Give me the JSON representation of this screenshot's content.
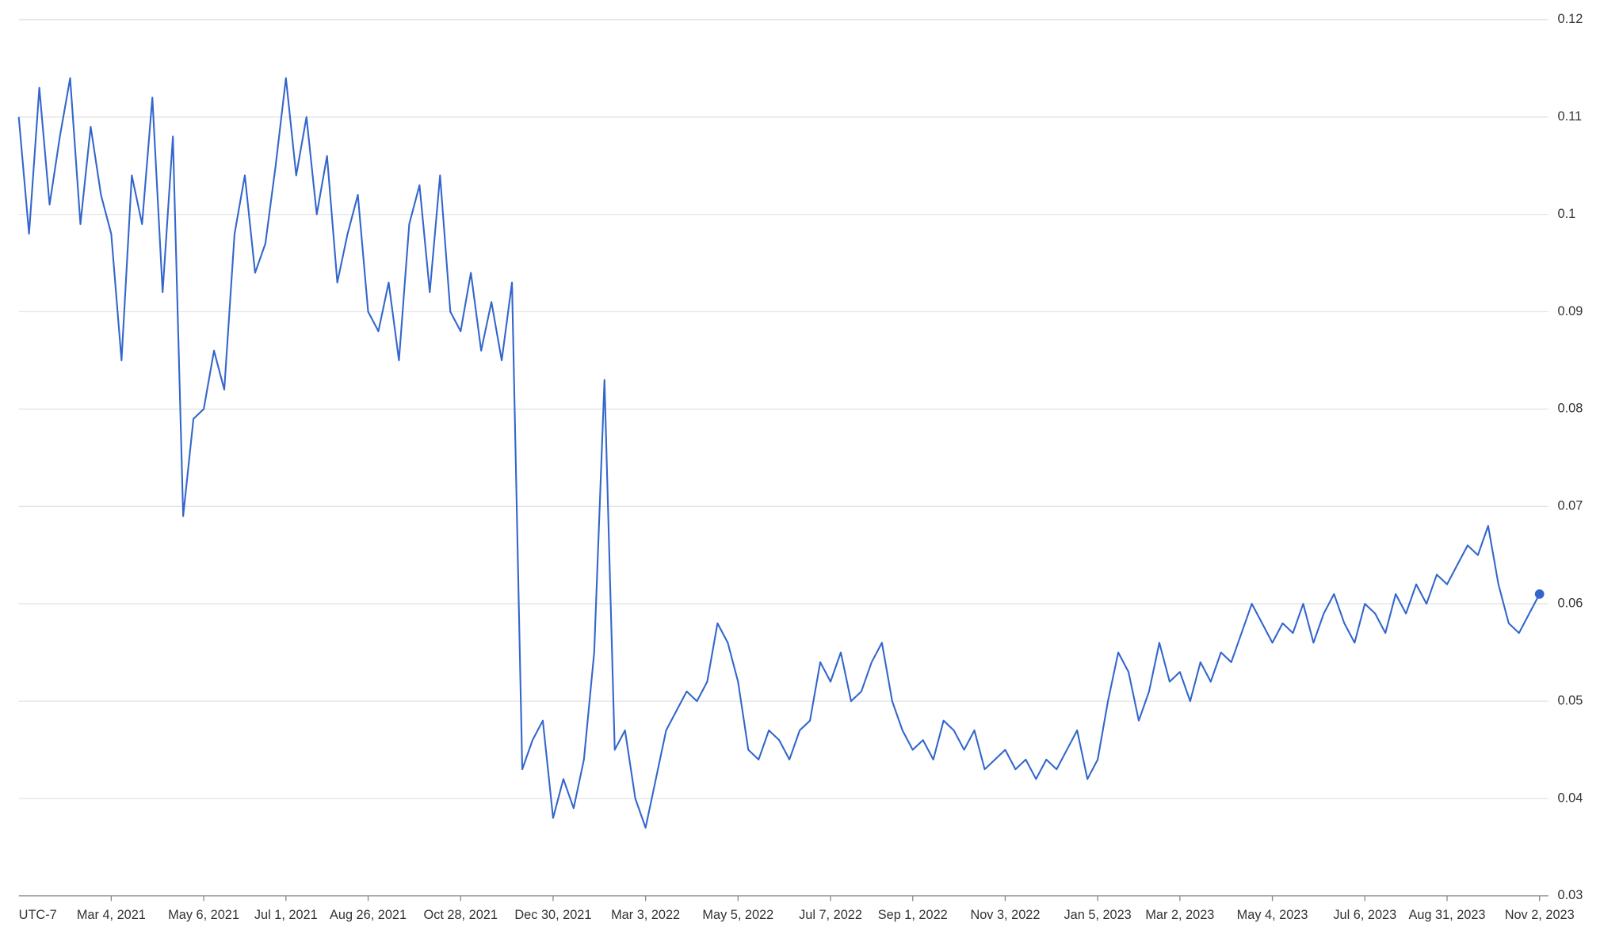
{
  "chart_data": {
    "type": "line",
    "timezone_label": "UTC-7",
    "x": [
      "2020-12-31",
      "2021-01-07",
      "2021-01-14",
      "2021-01-21",
      "2021-01-28",
      "2021-02-04",
      "2021-02-11",
      "2021-02-18",
      "2021-02-25",
      "2021-03-04",
      "2021-03-11",
      "2021-03-18",
      "2021-03-25",
      "2021-04-01",
      "2021-04-08",
      "2021-04-15",
      "2021-04-22",
      "2021-04-29",
      "2021-05-06",
      "2021-05-13",
      "2021-05-20",
      "2021-05-27",
      "2021-06-03",
      "2021-06-10",
      "2021-06-17",
      "2021-06-24",
      "2021-07-01",
      "2021-07-08",
      "2021-07-15",
      "2021-07-22",
      "2021-07-29",
      "2021-08-05",
      "2021-08-12",
      "2021-08-19",
      "2021-08-26",
      "2021-09-02",
      "2021-09-09",
      "2021-09-16",
      "2021-09-23",
      "2021-09-30",
      "2021-10-07",
      "2021-10-14",
      "2021-10-21",
      "2021-10-28",
      "2021-11-04",
      "2021-11-11",
      "2021-11-18",
      "2021-11-25",
      "2021-12-02",
      "2021-12-09",
      "2021-12-16",
      "2021-12-23",
      "2021-12-30",
      "2022-01-06",
      "2022-01-13",
      "2022-01-20",
      "2022-01-27",
      "2022-02-03",
      "2022-02-10",
      "2022-02-17",
      "2022-02-24",
      "2022-03-03",
      "2022-03-10",
      "2022-03-17",
      "2022-03-24",
      "2022-03-31",
      "2022-04-07",
      "2022-04-14",
      "2022-04-21",
      "2022-04-28",
      "2022-05-05",
      "2022-05-12",
      "2022-05-19",
      "2022-05-26",
      "2022-06-02",
      "2022-06-09",
      "2022-06-16",
      "2022-06-23",
      "2022-06-30",
      "2022-07-07",
      "2022-07-14",
      "2022-07-21",
      "2022-07-28",
      "2022-08-04",
      "2022-08-11",
      "2022-08-18",
      "2022-08-25",
      "2022-09-01",
      "2022-09-08",
      "2022-09-15",
      "2022-09-22",
      "2022-09-29",
      "2022-10-06",
      "2022-10-13",
      "2022-10-20",
      "2022-10-27",
      "2022-11-03",
      "2022-11-10",
      "2022-11-17",
      "2022-11-24",
      "2022-12-01",
      "2022-12-08",
      "2022-12-15",
      "2022-12-22",
      "2022-12-29",
      "2023-01-05",
      "2023-01-12",
      "2023-01-19",
      "2023-01-26",
      "2023-02-02",
      "2023-02-09",
      "2023-02-16",
      "2023-02-23",
      "2023-03-02",
      "2023-03-09",
      "2023-03-16",
      "2023-03-23",
      "2023-03-30",
      "2023-04-06",
      "2023-04-13",
      "2023-04-20",
      "2023-04-27",
      "2023-05-04",
      "2023-05-11",
      "2023-05-18",
      "2023-05-25",
      "2023-06-01",
      "2023-06-08",
      "2023-06-15",
      "2023-06-22",
      "2023-06-29",
      "2023-07-06",
      "2023-07-13",
      "2023-07-20",
      "2023-07-27",
      "2023-08-03",
      "2023-08-10",
      "2023-08-17",
      "2023-08-24",
      "2023-08-31",
      "2023-09-07",
      "2023-09-14",
      "2023-09-21",
      "2023-09-28",
      "2023-10-05",
      "2023-10-12",
      "2023-10-19",
      "2023-10-26",
      "2023-11-02"
    ],
    "series": [
      {
        "color": "#3366cc",
        "values": [
          0.11,
          0.098,
          0.113,
          0.101,
          0.108,
          0.114,
          0.099,
          0.109,
          0.102,
          0.098,
          0.085,
          0.104,
          0.099,
          0.112,
          0.092,
          0.108,
          0.069,
          0.079,
          0.08,
          0.086,
          0.082,
          0.098,
          0.104,
          0.094,
          0.097,
          0.105,
          0.114,
          0.104,
          0.11,
          0.1,
          0.106,
          0.093,
          0.098,
          0.102,
          0.09,
          0.088,
          0.093,
          0.085,
          0.099,
          0.103,
          0.092,
          0.104,
          0.09,
          0.088,
          0.094,
          0.086,
          0.091,
          0.085,
          0.093,
          0.043,
          0.046,
          0.048,
          0.038,
          0.042,
          0.039,
          0.044,
          0.055,
          0.083,
          0.045,
          0.047,
          0.04,
          0.037,
          0.042,
          0.047,
          0.049,
          0.051,
          0.05,
          0.052,
          0.058,
          0.056,
          0.052,
          0.045,
          0.044,
          0.047,
          0.046,
          0.044,
          0.047,
          0.048,
          0.054,
          0.052,
          0.055,
          0.05,
          0.051,
          0.054,
          0.056,
          0.05,
          0.047,
          0.045,
          0.046,
          0.044,
          0.048,
          0.047,
          0.045,
          0.047,
          0.043,
          0.044,
          0.045,
          0.043,
          0.044,
          0.042,
          0.044,
          0.043,
          0.045,
          0.047,
          0.042,
          0.044,
          0.05,
          0.055,
          0.053,
          0.048,
          0.051,
          0.056,
          0.052,
          0.053,
          0.05,
          0.054,
          0.052,
          0.055,
          0.054,
          0.057,
          0.06,
          0.058,
          0.056,
          0.058,
          0.057,
          0.06,
          0.056,
          0.059,
          0.061,
          0.058,
          0.056,
          0.06,
          0.059,
          0.057,
          0.061,
          0.059,
          0.062,
          0.06,
          0.063,
          0.062,
          0.064,
          0.066,
          0.065,
          0.068,
          0.062,
          0.058,
          0.057,
          0.059,
          0.061
        ]
      }
    ],
    "xlim": [
      "2020-12-31",
      "2023-11-08"
    ],
    "xticks": [
      {
        "value": "2021-03-04",
        "label": "Mar 4, 2021"
      },
      {
        "value": "2021-05-06",
        "label": "May 6, 2021"
      },
      {
        "value": "2021-07-01",
        "label": "Jul 1, 2021"
      },
      {
        "value": "2021-08-26",
        "label": "Aug 26, 2021"
      },
      {
        "value": "2021-10-28",
        "label": "Oct 28, 2021"
      },
      {
        "value": "2021-12-30",
        "label": "Dec 30, 2021"
      },
      {
        "value": "2022-03-03",
        "label": "Mar 3, 2022"
      },
      {
        "value": "2022-05-05",
        "label": "May 5, 2022"
      },
      {
        "value": "2022-07-07",
        "label": "Jul 7, 2022"
      },
      {
        "value": "2022-09-01",
        "label": "Sep 1, 2022"
      },
      {
        "value": "2022-11-03",
        "label": "Nov 3, 2022"
      },
      {
        "value": "2023-01-05",
        "label": "Jan 5, 2023"
      },
      {
        "value": "2023-03-02",
        "label": "Mar 2, 2023"
      },
      {
        "value": "2023-05-04",
        "label": "May 4, 2023"
      },
      {
        "value": "2023-07-06",
        "label": "Jul 6, 2023"
      },
      {
        "value": "2023-08-31",
        "label": "Aug 31, 2023"
      },
      {
        "value": "2023-11-02",
        "label": "Nov 2, 2023"
      }
    ],
    "ylim": [
      0.03,
      0.12
    ],
    "yticks": [
      0.03,
      0.04,
      0.05,
      0.06,
      0.07,
      0.08,
      0.09,
      0.1,
      0.11,
      0.12
    ],
    "grid": true,
    "yaxis_side": "right"
  }
}
